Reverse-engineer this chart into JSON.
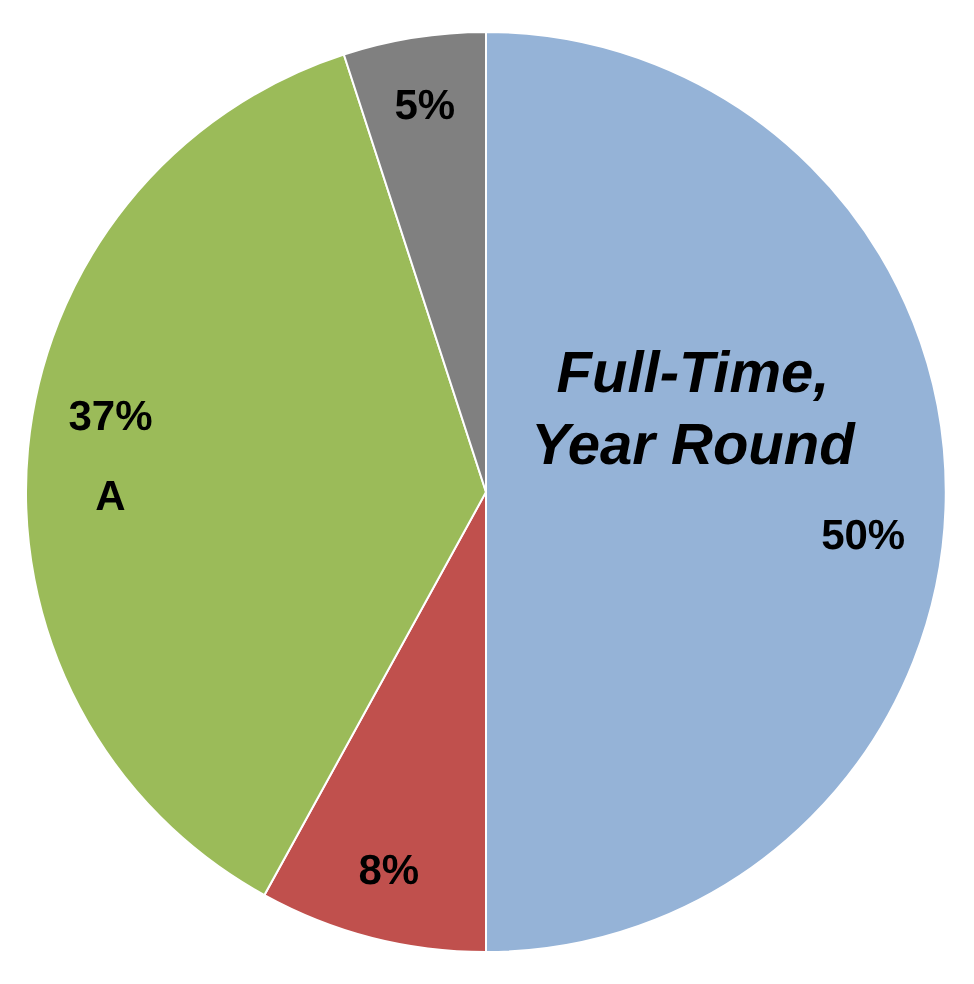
{
  "chart_data": {
    "type": "pie",
    "categories": [
      "Full-Time, Year Round",
      null,
      "A",
      null
    ],
    "values": [
      50,
      8,
      37,
      5
    ],
    "value_labels": [
      "50%",
      "8%",
      "37%",
      "5%"
    ],
    "colors": [
      "#95b3d7",
      "#c0504d",
      "#9bbb59",
      "#808080"
    ],
    "legend": false
  }
}
